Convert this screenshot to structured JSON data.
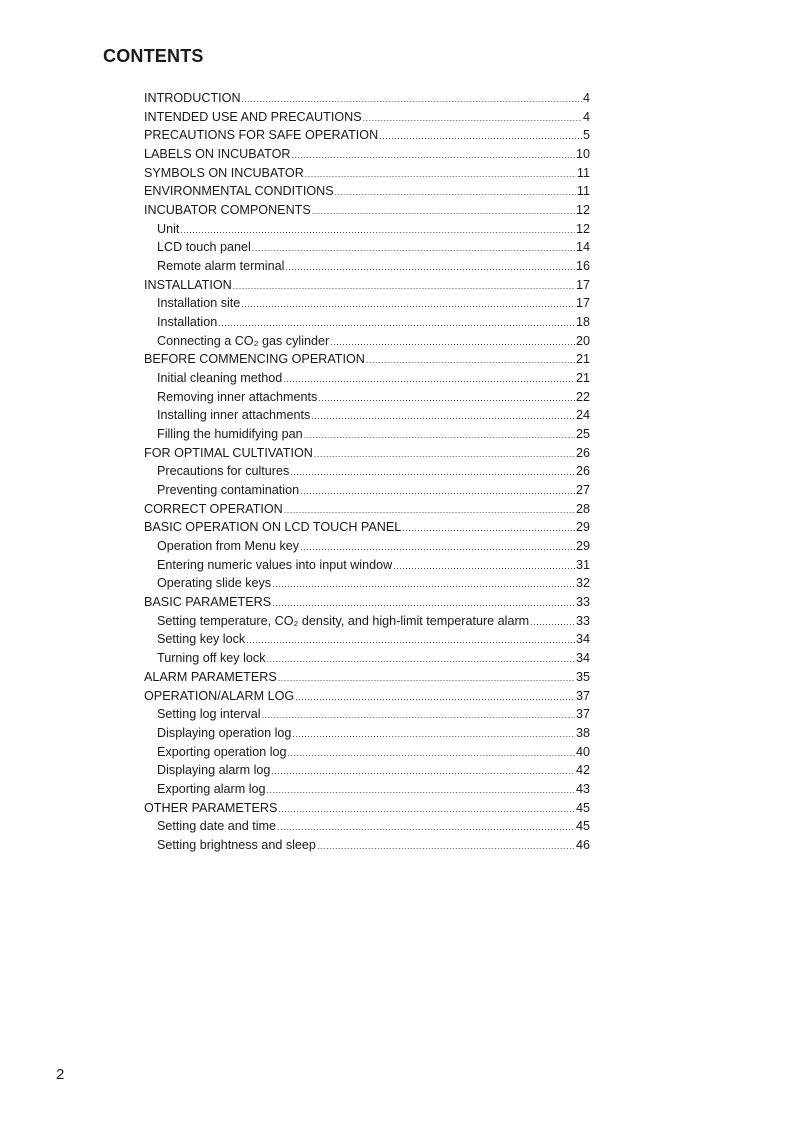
{
  "title": "CONTENTS",
  "page_number": "2",
  "entries": [
    {
      "label": "INTRODUCTION",
      "page": "4",
      "level": 1
    },
    {
      "label": "INTENDED USE AND PRECAUTIONS",
      "page": "4",
      "level": 1
    },
    {
      "label": "PRECAUTIONS FOR SAFE OPERATION",
      "page": "5",
      "level": 1
    },
    {
      "label": "LABELS ON INCUBATOR",
      "page": "10",
      "level": 1
    },
    {
      "label": "SYMBOLS ON INCUBATOR",
      "page": "11",
      "level": 1
    },
    {
      "label": "ENVIRONMENTAL CONDITIONS",
      "page": "11",
      "level": 1
    },
    {
      "label": "INCUBATOR COMPONENTS",
      "page": "12",
      "level": 1
    },
    {
      "label": "Unit",
      "page": "12",
      "level": 2
    },
    {
      "label": "LCD touch panel",
      "page": "14",
      "level": 2
    },
    {
      "label": "Remote alarm terminal",
      "page": "16",
      "level": 2
    },
    {
      "label": "INSTALLATION",
      "page": "17",
      "level": 1
    },
    {
      "label": "Installation site",
      "page": "17",
      "level": 2
    },
    {
      "label": "Installation",
      "page": "18",
      "level": 2
    },
    {
      "label": "Connecting a CO₂ gas cylinder",
      "page": "20",
      "level": 2
    },
    {
      "label": "BEFORE COMMENCING OPERATION",
      "page": "21",
      "level": 1
    },
    {
      "label": "Initial cleaning method",
      "page": "21",
      "level": 2
    },
    {
      "label": "Removing inner attachments",
      "page": "22",
      "level": 2
    },
    {
      "label": "Installing inner attachments",
      "page": "24",
      "level": 2
    },
    {
      "label": "Filling the humidifying pan",
      "page": "25",
      "level": 2
    },
    {
      "label": "FOR OPTIMAL CULTIVATION",
      "page": "26",
      "level": 1
    },
    {
      "label": "Precautions for cultures",
      "page": "26",
      "level": 2
    },
    {
      "label": "Preventing contamination",
      "page": "27",
      "level": 2
    },
    {
      "label": "CORRECT OPERATION",
      "page": "28",
      "level": 1
    },
    {
      "label": "BASIC OPERATION ON LCD TOUCH PANEL",
      "page": "29",
      "level": 1
    },
    {
      "label": "Operation from Menu key",
      "page": "29",
      "level": 2
    },
    {
      "label": "Entering numeric values into input window",
      "page": "31",
      "level": 2
    },
    {
      "label": "Operating slide keys",
      "page": "32",
      "level": 2
    },
    {
      "label": "BASIC PARAMETERS",
      "page": "33",
      "level": 1
    },
    {
      "label": "Setting temperature, CO₂ density, and high-limit temperature alarm",
      "page": "33",
      "level": 2
    },
    {
      "label": "Setting key lock",
      "page": "34",
      "level": 2
    },
    {
      "label": "Turning off key lock",
      "page": "34",
      "level": 2
    },
    {
      "label": "ALARM PARAMETERS",
      "page": "35",
      "level": 1
    },
    {
      "label": "OPERATION/ALARM LOG",
      "page": "37",
      "level": 1
    },
    {
      "label": "Setting log interval",
      "page": "37",
      "level": 2
    },
    {
      "label": "Displaying operation log",
      "page": "38",
      "level": 2
    },
    {
      "label": "Exporting operation log",
      "page": "40",
      "level": 2
    },
    {
      "label": "Displaying alarm log",
      "page": "42",
      "level": 2
    },
    {
      "label": "Exporting alarm log",
      "page": "43",
      "level": 2
    },
    {
      "label": "OTHER PARAMETERS",
      "page": "45",
      "level": 1
    },
    {
      "label": "Setting date and time",
      "page": "45",
      "level": 2
    },
    {
      "label": "Setting brightness and sleep",
      "page": "46",
      "level": 2
    }
  ]
}
